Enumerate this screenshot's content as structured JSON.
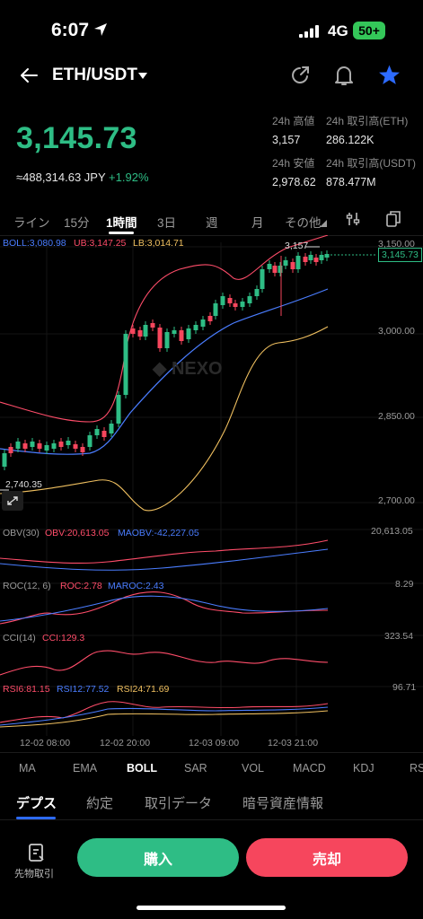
{
  "status": {
    "time": "6:07",
    "network": "4G",
    "battery": "50+"
  },
  "header": {
    "pair": "ETH/USDT"
  },
  "price": {
    "last": "3,145.73",
    "jpy": "≈488,314.63 JPY",
    "change": "+1.92%"
  },
  "stats": {
    "high_label": "24h 高値",
    "high": "3,157",
    "vol_eth_label": "24h 取引高(ETH)",
    "vol_eth": "286.122K",
    "low_label": "24h 安値",
    "low": "2,978.62",
    "vol_usdt_label": "24h 取引高(USDT)",
    "vol_usdt": "878.477M"
  },
  "timeframes": [
    "ライン",
    "15分",
    "1時間",
    "3日",
    "週",
    "月",
    "その他"
  ],
  "active_timeframe": "1時間",
  "legend": {
    "boll": "BOLL:3,080.98",
    "ub": "UB:3,147.25",
    "lb": "LB:3,014.71",
    "obv_name": "OBV(30)",
    "obv": "OBV:20,613.05",
    "maobv": "MAOBV:-42,227.05",
    "roc_name": "ROC(12, 6)",
    "roc": "ROC:2.78",
    "maroc": "MAROC:2.43",
    "cci_name": "CCI(14)",
    "cci": "CCI:129.3",
    "rsi6": "RSI6:81.15",
    "rsi12": "RSI12:77.52",
    "rsi24": "RSI24:71.69"
  },
  "axis": {
    "price_ticks": [
      "3,150.00",
      "3,000.00",
      "2,850.00",
      "2,700.00"
    ],
    "obv_top": "20,613.05",
    "roc_top": "8.29",
    "cci_top": "323.54",
    "rsi_top": "96.71",
    "time_ticks": [
      "12-02 08:00",
      "12-02 20:00",
      "12-03 09:00",
      "12-03 21:00"
    ],
    "high_marker": "3,157",
    "low_marker": "2,740.35",
    "last_tag": "3,145.73"
  },
  "indicators": [
    "MA",
    "EMA",
    "BOLL",
    "SAR",
    "VOL",
    "MACD",
    "KDJ",
    "RS"
  ],
  "active_indicator": "BOLL",
  "sections": [
    "デプス",
    "約定",
    "取引データ",
    "暗号資産情報"
  ],
  "bottom": {
    "futures": "先物取引",
    "buy": "購入",
    "sell": "売却"
  },
  "colors": {
    "up": "#2ebd85",
    "down": "#f6465d",
    "accent": "#2d6bff"
  }
}
